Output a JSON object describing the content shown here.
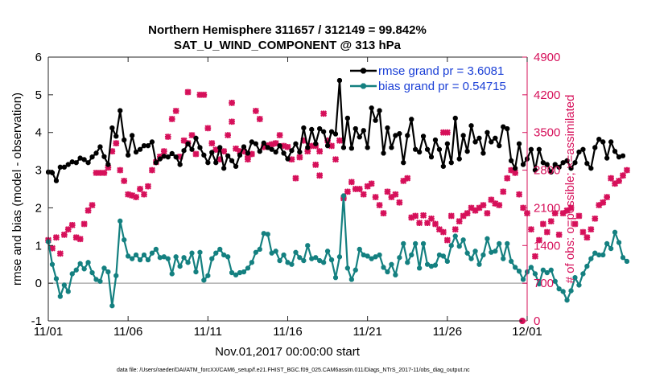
{
  "colors": {
    "rmse": "#000000",
    "bias": "#148080",
    "obs": "#d6105a",
    "legend_text": "#1a3fd6",
    "zero_line": "#b0b0b0",
    "axis": "#262626"
  },
  "chart_data": {
    "type": "line",
    "title": "Northern Hemisphere 311657 / 312149 = 99.842%",
    "subtitle": "SAT_U_WIND_COMPONENT @ 313 hPa",
    "xlabel": "Nov.01,2017 00:00:00 start",
    "ylabel": "rmse and bias (model - observation)",
    "y2label": "# of obs: o=possible; ×=assimilated",
    "footnote": "data file: /Users/raeder/DAI/ATM_forcXX/CAM6_setup/f.e21.FHIST_BGC.f09_025.CAM6assim.011/Diags_NTrS_2017-11/obs_diag_output.nc",
    "xlim": [
      0,
      30
    ],
    "ylim": [
      -1,
      6
    ],
    "y2lim": [
      0,
      4900
    ],
    "xticks": [
      0,
      5,
      10,
      15,
      20,
      25,
      30
    ],
    "xtick_labels": [
      "11/01",
      "11/06",
      "11/11",
      "11/16",
      "11/21",
      "11/26",
      "12/01"
    ],
    "yticks": [
      -1,
      0,
      1,
      2,
      3,
      4,
      5,
      6
    ],
    "ytick_labels": [
      "-1",
      "0",
      "1",
      "2",
      "3",
      "4",
      "5",
      "6"
    ],
    "y2ticks": [
      0,
      700,
      1400,
      2100,
      2800,
      3500,
      4200,
      4900
    ],
    "y2tick_labels": [
      "0",
      "700",
      "1400",
      "2100",
      "2800",
      "3500",
      "4200",
      "4900"
    ],
    "legend_position": "top-right",
    "series": [
      {
        "name": "rmse grand pr = 3.6081",
        "axis": "left",
        "x_step": 0.25,
        "values": [
          2.95,
          2.93,
          2.72,
          3.08,
          3.08,
          3.15,
          3.22,
          3.2,
          3.32,
          3.28,
          3.2,
          3.35,
          3.45,
          3.62,
          3.36,
          3.15,
          4.12,
          3.9,
          4.58,
          3.8,
          3.4,
          3.92,
          3.48,
          3.55,
          3.65,
          3.65,
          3.75,
          3.2,
          3.3,
          3.37,
          3.35,
          3.44,
          3.35,
          3.15,
          3.52,
          3.7,
          3.55,
          3.85,
          3.6,
          3.4,
          3.2,
          3.47,
          3.2,
          3.6,
          3.05,
          3.38,
          3.25,
          3.1,
          3.4,
          3.62,
          3.45,
          3.75,
          3.7,
          3.5,
          3.72,
          3.6,
          3.55,
          3.48,
          3.65,
          3.45,
          3.3,
          3.52,
          3.7,
          3.48,
          4.12,
          3.6,
          4.08,
          3.7,
          4.1,
          4.02,
          3.65,
          4.02,
          3.96,
          5.38,
          3.6,
          4.38,
          3.58,
          4.1,
          3.88,
          4.05,
          3.6,
          4.65,
          4.32,
          4.58,
          3.45,
          4.12,
          3.6,
          3.92,
          3.97,
          3.2,
          3.92,
          4.35,
          3.55,
          3.48,
          3.9,
          3.55,
          3.35,
          3.8,
          3.55,
          3.1,
          3.7,
          3.2,
          4.38,
          3.3,
          3.92,
          3.5,
          4.18,
          3.75,
          3.85,
          3.45,
          4.0,
          3.75,
          3.85,
          3.65,
          4.15,
          4.1,
          3.25,
          3.05,
          3.7,
          3.15,
          3.3,
          3.55,
          3.0,
          3.55,
          3.2,
          3.15,
          2.95,
          3.15,
          3.08,
          3.2,
          3.25,
          3.05,
          3.2,
          3.48,
          3.55,
          3.18,
          3.05,
          3.6,
          3.82,
          3.75,
          3.32,
          3.75,
          3.5,
          3.35,
          3.38
        ]
      },
      {
        "name": "bias grand pr = 0.54715",
        "axis": "left",
        "x_step": 0.25,
        "values": [
          1.1,
          0.5,
          0.12,
          -0.35,
          -0.05,
          -0.22,
          0.25,
          0.35,
          0.52,
          0.38,
          0.55,
          0.28,
          0.1,
          0.05,
          0.4,
          0.3,
          -0.6,
          0.2,
          1.65,
          1.15,
          0.72,
          0.65,
          0.75,
          0.62,
          0.75,
          0.62,
          0.8,
          0.9,
          0.68,
          0.7,
          0.65,
          0.25,
          0.7,
          0.45,
          0.68,
          0.55,
          0.8,
          0.3,
          0.82,
          0.08,
          0.2,
          0.65,
          0.8,
          0.9,
          0.75,
          0.7,
          0.28,
          0.22,
          0.28,
          0.3,
          0.4,
          0.55,
          0.82,
          0.9,
          1.32,
          1.3,
          0.8,
          0.85,
          0.6,
          0.75,
          0.55,
          0.5,
          0.82,
          0.68,
          0.6,
          1.0,
          0.65,
          0.68,
          0.6,
          0.55,
          0.85,
          0.62,
          0.15,
          0.7,
          2.32,
          0.4,
          0.1,
          0.35,
          0.9,
          0.75,
          0.72,
          0.65,
          0.7,
          0.75,
          0.42,
          0.3,
          0.5,
          0.22,
          0.68,
          1.05,
          0.55,
          0.75,
          1.05,
          0.4,
          1.05,
          0.5,
          0.45,
          0.48,
          0.75,
          0.72,
          0.58,
          1.0,
          1.25,
          0.98,
          1.15,
          0.8,
          0.65,
          0.85,
          0.5,
          0.75,
          1.18,
          0.82,
          0.85,
          1.05,
          0.65,
          1.05,
          0.58,
          0.42,
          0.32,
          0.1,
          0.3,
          0.42,
          0.25,
          -0.02,
          0.35,
          0.28,
          0.35,
          0.05,
          -0.15,
          -0.22,
          -0.45,
          -0.2,
          0.15,
          -0.05,
          0.25,
          0.45,
          0.65,
          0.8,
          0.75,
          0.75,
          1.05,
          0.92,
          1.35,
          1.08,
          0.68,
          0.58
        ]
      },
      {
        "name": "# of obs assimilated",
        "axis": "right",
        "marker": "x",
        "x_step": 0.25,
        "values": [
          1500,
          1350,
          1550,
          1250,
          1600,
          1700,
          1780,
          1550,
          1520,
          1800,
          2050,
          2150,
          2750,
          2750,
          2750,
          2850,
          3150,
          3300,
          2800,
          2600,
          2350,
          2330,
          2300,
          2450,
          2350,
          2500,
          2800,
          2950,
          3050,
          3150,
          3420,
          3750,
          3900,
          3050,
          3350,
          3300,
          3450,
          3100,
          4200,
          4200,
          3580,
          3300,
          3180,
          3000,
          3150,
          3450,
          4050,
          3200,
          3150,
          3150,
          3000,
          3100,
          3900,
          3750,
          3230,
          3260,
          3280,
          3300,
          3450,
          3250,
          3230,
          3000,
          2650,
          3040,
          3350,
          3150,
          3250,
          3250,
          3150,
          3850,
          3350,
          3250,
          3000,
          3350,
          2280,
          2400,
          2580,
          2450,
          2450,
          2350,
          2500,
          2550,
          2300,
          2150,
          2000,
          2400,
          2300,
          2350,
          2200,
          2600,
          2650,
          1920,
          1950,
          1820,
          1960,
          1820,
          1900,
          1800,
          1700,
          1650,
          1500,
          1950,
          1700,
          1850,
          1950,
          2000,
          2100,
          2050,
          2100,
          2150,
          2000,
          2250,
          2180,
          2150,
          2400,
          2650,
          2800,
          2750,
          2350,
          2100,
          2000,
          1700,
          1200,
          1500,
          1800,
          1650,
          1850,
          2000,
          1600,
          2000,
          2050,
          2100,
          1800,
          1950,
          1650,
          1550,
          1700,
          1900,
          2150,
          2200,
          2300,
          2650,
          2550,
          2600,
          2700,
          2800
        ]
      }
    ],
    "extra_obs_points": [
      {
        "x": 8.75,
        "y2": 4250
      },
      {
        "x": 11.5,
        "y2": 3700
      },
      {
        "x": 12.5,
        "y2": 3050
      },
      {
        "x": 16.75,
        "y2": 2900
      },
      {
        "x": 17.0,
        "y2": 2700
      },
      {
        "x": 24.75,
        "y2": 3500
      },
      {
        "x": 25.0,
        "y2": 3500
      },
      {
        "x": 29.7,
        "y2": 0
      }
    ]
  }
}
